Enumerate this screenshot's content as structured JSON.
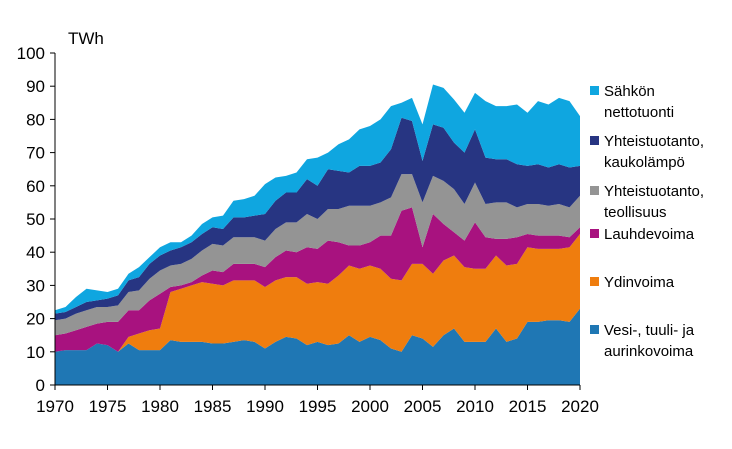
{
  "chart_data": {
    "type": "area",
    "stacked": true,
    "unit": "TWh",
    "xlim": [
      1970,
      2020
    ],
    "ylim": [
      0,
      100
    ],
    "xticks": [
      1970,
      1975,
      1980,
      1985,
      1990,
      1995,
      2000,
      2005,
      2010,
      2015,
      2020
    ],
    "yticks": [
      0,
      10,
      20,
      30,
      40,
      50,
      60,
      70,
      80,
      90,
      100
    ],
    "grid": false,
    "legend_position": "right",
    "x": [
      1970,
      1971,
      1972,
      1973,
      1974,
      1975,
      1976,
      1977,
      1978,
      1979,
      1980,
      1981,
      1982,
      1983,
      1984,
      1985,
      1986,
      1987,
      1988,
      1989,
      1990,
      1991,
      1992,
      1993,
      1994,
      1995,
      1996,
      1997,
      1998,
      1999,
      2000,
      2001,
      2002,
      2003,
      2004,
      2005,
      2006,
      2007,
      2008,
      2009,
      2010,
      2011,
      2012,
      2013,
      2014,
      2015,
      2016,
      2017,
      2018,
      2019,
      2020
    ],
    "series": [
      {
        "name": "Vesi-, tuuli- ja aurinkovoima",
        "color": "#1f77b4",
        "values": [
          10,
          10.5,
          10.5,
          10.5,
          12.5,
          12,
          10,
          12.5,
          10.5,
          10.5,
          10.5,
          13.5,
          13,
          13,
          13,
          12.5,
          12.5,
          13,
          13.5,
          13,
          11,
          13,
          14.5,
          14,
          12,
          13,
          12,
          12.5,
          15,
          13,
          14.5,
          13.5,
          11,
          10,
          15,
          14,
          11.5,
          15,
          17,
          13,
          13,
          13,
          17,
          13,
          14,
          19,
          19,
          19.5,
          19.5,
          19,
          23
        ]
      },
      {
        "name": "Ydinvoima",
        "color": "#ef7d0e",
        "values": [
          0,
          0,
          0,
          0,
          0,
          0,
          0,
          2,
          5,
          6,
          6.5,
          14.5,
          16,
          17,
          18,
          18,
          17.5,
          18.5,
          18,
          18.5,
          18.5,
          18.5,
          18,
          18.5,
          18.5,
          18,
          18.5,
          20.5,
          21,
          22,
          21.5,
          21.5,
          21,
          21.5,
          21.5,
          22.5,
          22,
          22.5,
          22,
          22.5,
          22,
          22,
          22,
          23,
          22.5,
          22.5,
          22,
          21.5,
          21.5,
          22.5,
          22.5
        ]
      },
      {
        "name": "Lauhdevoima",
        "color": "#a8127f",
        "values": [
          5,
          5,
          6,
          7,
          6,
          7,
          9,
          8,
          7,
          9,
          10.5,
          1.5,
          1,
          1,
          2,
          4,
          4,
          5,
          5,
          5,
          6,
          7,
          8,
          7.5,
          11,
          10,
          13,
          10,
          6,
          7,
          7,
          10,
          13,
          21,
          17,
          5,
          18,
          11,
          7,
          8,
          14,
          9.5,
          5,
          8,
          8,
          4,
          4,
          4,
          4,
          3,
          2
        ]
      },
      {
        "name": "Yhteistuotanto, teollisuus",
        "color": "#949494",
        "values": [
          4.5,
          4.5,
          5,
          5,
          5,
          4.5,
          5,
          5.5,
          6,
          6.5,
          7,
          6.5,
          6.5,
          7,
          7.5,
          8,
          8,
          8,
          8,
          8,
          8,
          8.5,
          8.5,
          9,
          10,
          9,
          9.5,
          10,
          12,
          12,
          11,
          10,
          11.5,
          11,
          10,
          13.5,
          11.5,
          13,
          13,
          11,
          12,
          10,
          11,
          11,
          9,
          9,
          9.5,
          9,
          9.5,
          9,
          9.5
        ]
      },
      {
        "name": "Yhteistuotanto, kaukolämpö",
        "color": "#273582",
        "values": [
          2,
          2,
          2,
          2.5,
          2,
          2.5,
          3,
          3.5,
          4,
          4.5,
          4.5,
          4.5,
          5,
          5,
          5,
          5,
          5,
          6,
          6,
          6.5,
          8,
          8.5,
          9,
          9,
          10.5,
          10,
          12,
          11.5,
          10,
          12,
          12,
          12,
          14.5,
          17,
          16,
          12.5,
          15.5,
          16,
          14,
          15.5,
          16,
          14,
          13,
          13,
          13,
          11.5,
          12,
          11.5,
          12,
          12,
          9
        ]
      },
      {
        "name": "Sähkön nettotuonti",
        "color": "#0fa6e0",
        "values": [
          1,
          1.5,
          3,
          4,
          3,
          2,
          2,
          2,
          3,
          2,
          2.5,
          2.5,
          1.5,
          2,
          3,
          3,
          4,
          5,
          5.5,
          6,
          9,
          7,
          5,
          6,
          6,
          8.5,
          5,
          8,
          10,
          11,
          12,
          13,
          13,
          4.5,
          7,
          11,
          12,
          12,
          13,
          12,
          11,
          17,
          16,
          16,
          18,
          16,
          19,
          19,
          20,
          20,
          15
        ]
      }
    ]
  },
  "labels": {
    "unit": "TWh",
    "legend": [
      [
        "Sähkön",
        "nettotuonti"
      ],
      [
        "Yhteistuotanto,",
        "kaukolämpö"
      ],
      [
        "Yhteistuotanto,",
        "teollisuus"
      ],
      [
        "Lauhdevoima"
      ],
      [
        "Ydinvoima"
      ],
      [
        "Vesi-, tuuli- ja",
        "aurinkovoima"
      ]
    ]
  }
}
